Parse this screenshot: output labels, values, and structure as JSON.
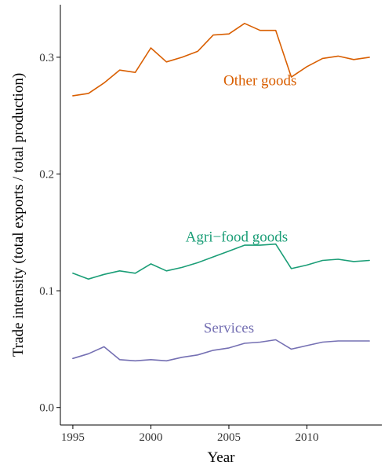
{
  "chart_data": {
    "type": "line",
    "xlabel": "Year",
    "ylabel": "Trade intensity (total exports / total production)",
    "xlim": [
      1994.2,
      2014.8
    ],
    "ylim": [
      -0.015,
      0.345
    ],
    "xticks": [
      1995,
      2000,
      2005,
      2010
    ],
    "yticks": [
      0.0,
      0.1,
      0.2,
      0.3
    ],
    "ytick_labels": [
      "0.0",
      "0.1",
      "0.2",
      "0.3"
    ],
    "xtick_labels": [
      "1995",
      "2000",
      "2005",
      "2010"
    ],
    "grid": false,
    "x": [
      1995,
      1996,
      1997,
      1998,
      1999,
      2000,
      2001,
      2002,
      2003,
      2004,
      2005,
      2006,
      2007,
      2008,
      2009,
      2010,
      2011,
      2012,
      2013,
      2014
    ],
    "series": [
      {
        "name": "Other goods",
        "color": "#d95f02",
        "label_at": [
          2007.0,
          0.28
        ],
        "values": [
          0.267,
          0.269,
          0.278,
          0.289,
          0.287,
          0.308,
          0.296,
          0.3,
          0.305,
          0.319,
          0.32,
          0.329,
          0.323,
          0.323,
          0.283,
          0.292,
          0.299,
          0.301,
          0.298,
          0.3
        ]
      },
      {
        "name": "Agri−food goods",
        "color": "#1b9e77",
        "label_at": [
          2005.5,
          0.146
        ],
        "values": [
          0.115,
          0.11,
          0.114,
          0.117,
          0.115,
          0.123,
          0.117,
          0.12,
          0.124,
          0.129,
          0.134,
          0.139,
          0.139,
          0.14,
          0.119,
          0.122,
          0.126,
          0.127,
          0.125,
          0.126
        ]
      },
      {
        "name": "Services",
        "color": "#7570b3",
        "label_at": [
          2005.0,
          0.068
        ],
        "values": [
          0.042,
          0.046,
          0.052,
          0.041,
          0.04,
          0.041,
          0.04,
          0.043,
          0.045,
          0.049,
          0.051,
          0.055,
          0.056,
          0.058,
          0.05,
          0.053,
          0.056,
          0.057,
          0.057,
          0.057
        ]
      }
    ]
  }
}
